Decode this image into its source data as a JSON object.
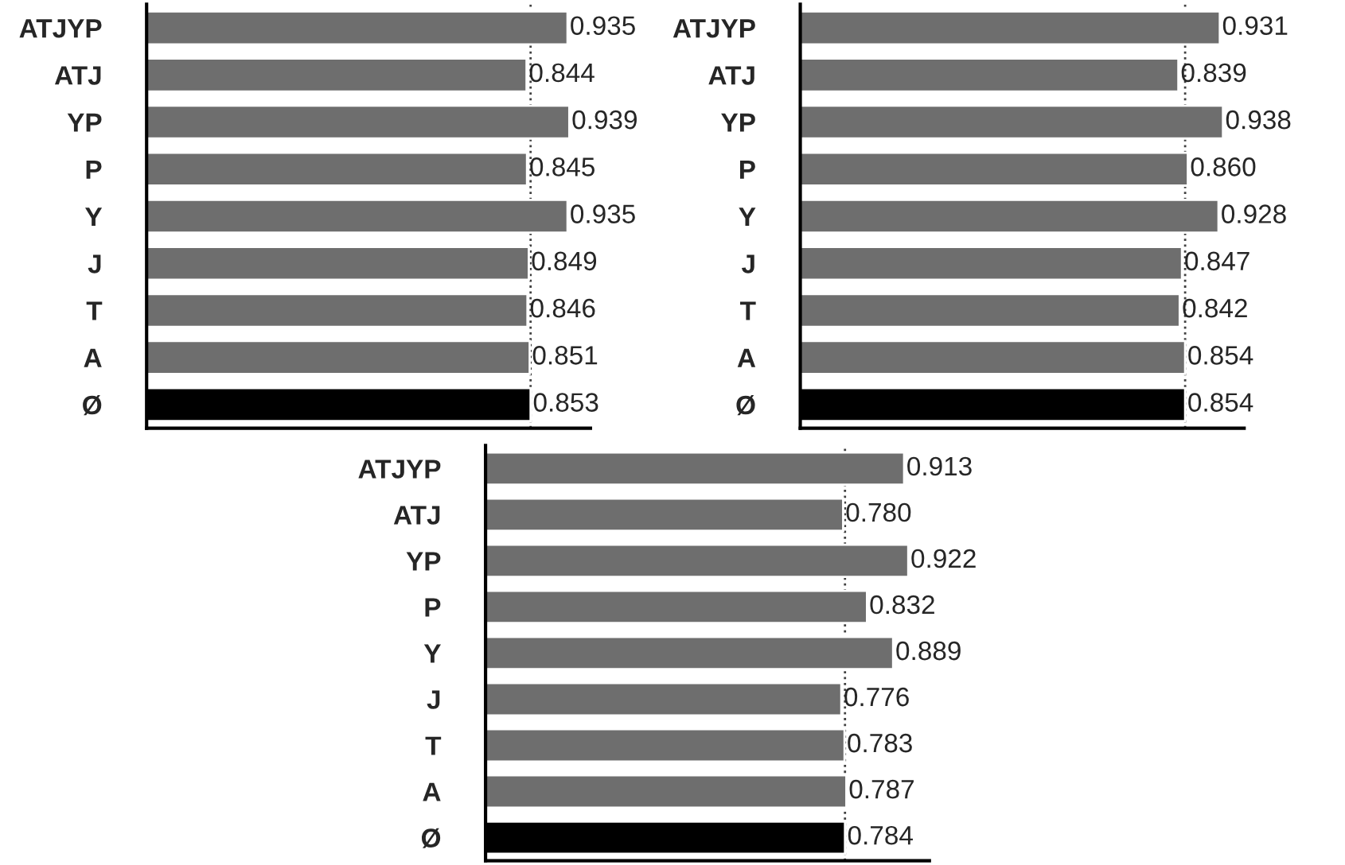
{
  "chart_data": [
    {
      "type": "bar",
      "orientation": "horizontal",
      "categories": [
        "ATJYP",
        "ATJ",
        "YP",
        "P",
        "Y",
        "J",
        "T",
        "A",
        "Ø"
      ],
      "values": [
        0.935,
        0.844,
        0.939,
        0.845,
        0.935,
        0.849,
        0.846,
        0.851,
        0.853
      ],
      "colors": [
        "#6e6e6e",
        "#6e6e6e",
        "#6e6e6e",
        "#6e6e6e",
        "#6e6e6e",
        "#6e6e6e",
        "#6e6e6e",
        "#6e6e6e",
        "#000000"
      ],
      "data_labels": true,
      "tick_labels": "y",
      "ref_lines": [
        {
          "axis": "x",
          "value": 0.853,
          "line_style": "dotted",
          "color": "#404040"
        }
      ]
    },
    {
      "type": "bar",
      "orientation": "horizontal",
      "categories": [
        "ATJYP",
        "ATJ",
        "YP",
        "P",
        "Y",
        "J",
        "T",
        "A",
        "Ø"
      ],
      "values": [
        0.931,
        0.839,
        0.938,
        0.86,
        0.928,
        0.847,
        0.842,
        0.854,
        0.854
      ],
      "value_labels": [
        "0.931",
        "0.839",
        "0.938",
        "0.860",
        "0.928",
        "0.847",
        "0.842",
        "0.854",
        "0.854"
      ],
      "colors": [
        "#6e6e6e",
        "#6e6e6e",
        "#6e6e6e",
        "#6e6e6e",
        "#6e6e6e",
        "#6e6e6e",
        "#6e6e6e",
        "#6e6e6e",
        "#000000"
      ],
      "tick_labels": "y",
      "ref_lines": [
        {
          "axis": "x",
          "value": 0.854,
          "line_style": "dotted",
          "color": "#404040"
        }
      ]
    },
    {
      "type": "bar",
      "orientation": "horizontal",
      "categories": [
        "ATJYP",
        "ATJ",
        "YP",
        "P",
        "Y",
        "J",
        "T",
        "A",
        "Ø"
      ],
      "values": [
        0.913,
        0.78,
        0.922,
        0.832,
        0.889,
        0.776,
        0.783,
        0.787,
        0.784
      ],
      "value_labels": [
        "0.913",
        "0.780",
        "0.922",
        "0.832",
        "0.889",
        "0.776",
        "0.783",
        "0.787",
        "0.784"
      ],
      "colors": [
        "#6e6e6e",
        "#6e6e6e",
        "#6e6e6e",
        "#6e6e6e",
        "#6e6e6e",
        "#6e6e6e",
        "#6e6e6e",
        "#6e6e6e",
        "#000000"
      ],
      "tick_labels": "y",
      "ref_lines": [
        {
          "axis": "x",
          "value": 0.784,
          "line_style": "dotted",
          "color": "#404040"
        }
      ]
    }
  ]
}
